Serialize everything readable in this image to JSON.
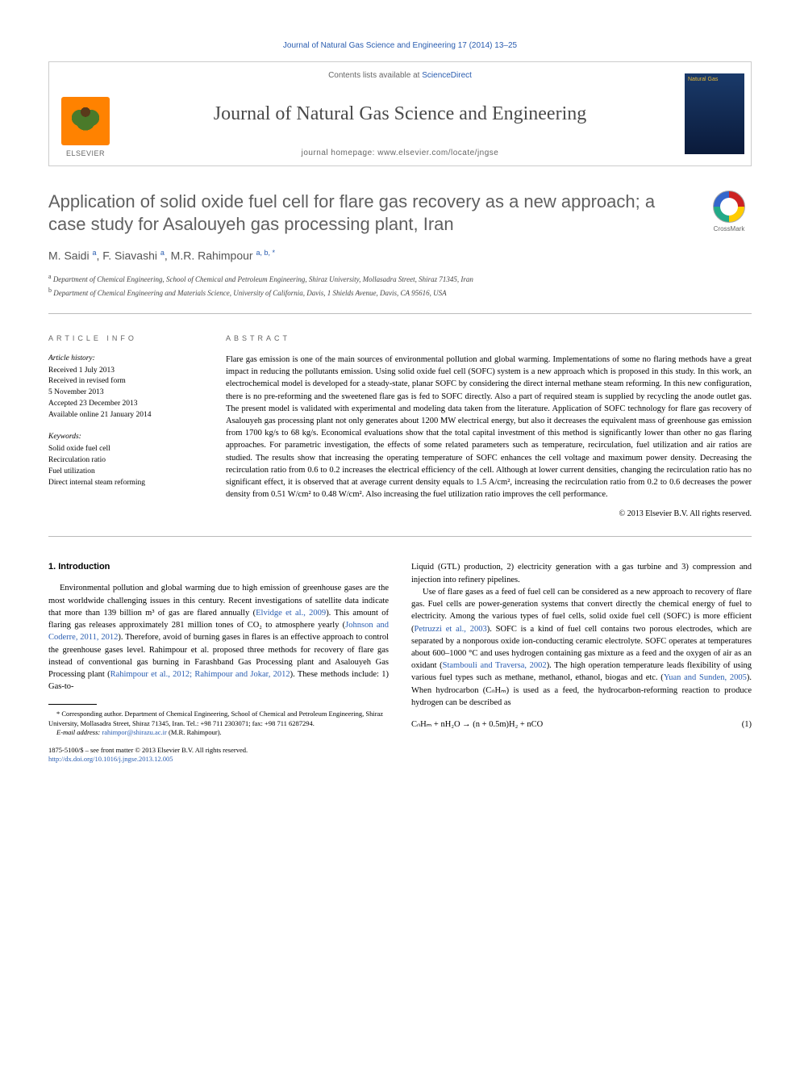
{
  "top_citation": "Journal of Natural Gas Science and Engineering 17 (2014) 13–25",
  "header": {
    "publisher_label": "ELSEVIER",
    "contents_prefix": "Contents lists available at ",
    "contents_link": "ScienceDirect",
    "journal_name": "Journal of Natural Gas Science and Engineering",
    "homepage_label": "journal homepage: ",
    "homepage_url": "www.elsevier.com/locate/jngse",
    "cover_text": "Natural Gas"
  },
  "crossmark_label": "CrossMark",
  "title": "Application of solid oxide fuel cell for flare gas recovery as a new approach; a case study for Asalouyeh gas processing plant, Iran",
  "authors_html": "M. Saidi <sup>a</sup>, F. Siavashi <sup>a</sup>, M.R. Rahimpour <sup>a, b, *</sup>",
  "affiliations": {
    "a": "Department of Chemical Engineering, School of Chemical and Petroleum Engineering, Shiraz University, Mollasadra Street, Shiraz 71345, Iran",
    "b": "Department of Chemical Engineering and Materials Science, University of California, Davis, 1 Shields Avenue, Davis, CA 95616, USA"
  },
  "article_info": {
    "heading": "ARTICLE INFO",
    "history_label": "Article history:",
    "history": [
      "Received 1 July 2013",
      "Received in revised form",
      "5 November 2013",
      "Accepted 23 December 2013",
      "Available online 21 January 2014"
    ],
    "keywords_label": "Keywords:",
    "keywords": [
      "Solid oxide fuel cell",
      "Recirculation ratio",
      "Fuel utilization",
      "Direct internal steam reforming"
    ]
  },
  "abstract": {
    "heading": "ABSTRACT",
    "text": "Flare gas emission is one of the main sources of environmental pollution and global warming. Implementations of some no flaring methods have a great impact in reducing the pollutants emission. Using solid oxide fuel cell (SOFC) system is a new approach which is proposed in this study. In this work, an electrochemical model is developed for a steady-state, planar SOFC by considering the direct internal methane steam reforming. In this new configuration, there is no pre-reforming and the sweetened flare gas is fed to SOFC directly. Also a part of required steam is supplied by recycling the anode outlet gas. The present model is validated with experimental and modeling data taken from the literature. Application of SOFC technology for flare gas recovery of Asalouyeh gas processing plant not only generates about 1200 MW electrical energy, but also it decreases the equivalent mass of greenhouse gas emission from 1700 kg/s to 68 kg/s. Economical evaluations show that the total capital investment of this method is significantly lower than other no gas flaring approaches. For parametric investigation, the effects of some related parameters such as temperature, recirculation, fuel utilization and air ratios are studied. The results show that increasing the operating temperature of SOFC enhances the cell voltage and maximum power density. Decreasing the recirculation ratio from 0.6 to 0.2 increases the electrical efficiency of the cell. Although at lower current densities, changing the recirculation ratio has no significant effect, it is observed that at average current density equals to 1.5 A/cm², increasing the recirculation ratio from 0.2 to 0.6 decreases the power density from 0.51 W/cm² to 0.48 W/cm². Also increasing the fuel utilization ratio improves the cell performance.",
    "copyright": "© 2013 Elsevier B.V. All rights reserved."
  },
  "body": {
    "section_heading": "1. Introduction",
    "para1_pre": "Environmental pollution and global warming due to high emission of greenhouse gases are the most worldwide challenging issues in this century. Recent investigations of satellite data indicate that more than 139 billion m³ of gas are flared annually (",
    "ref1": "Elvidge et al., 2009",
    "para1_mid1": "). This amount of flaring gas releases approximately 281 million tones of CO₂ to atmosphere yearly (",
    "ref2": "Johnson and Coderre, 2011, 2012",
    "para1_mid2": "). Therefore, avoid of burning gases in flares is an effective approach to control the greenhouse gases level. Rahimpour et al. proposed three methods for recovery of flare gas instead of conventional gas burning in Farashband Gas Processing plant and Asalouyeh Gas Processing plant (",
    "ref3": "Rahimpour et al., 2012; Rahimpour and Jokar, 2012",
    "para1_post": "). These methods include: 1) Gas-to-",
    "para2": "Liquid (GTL) production, 2) electricity generation with a gas turbine and 3) compression and injection into refinery pipelines.",
    "para3_pre": "Use of flare gases as a feed of fuel cell can be considered as a new approach to recovery of flare gas. Fuel cells are power-generation systems that convert directly the chemical energy of fuel to electricity. Among the various types of fuel cells, solid oxide fuel cell (SOFC) is more efficient (",
    "ref4": "Petruzzi et al., 2003",
    "para3_mid1": "). SOFC is a kind of fuel cell contains two porous electrodes, which are separated by a nonporous oxide ion-conducting ceramic electrolyte. SOFC operates at temperatures about 600–1000 °C and uses hydrogen containing gas mixture as a feed and the oxygen of air as an oxidant (",
    "ref5": "Stambouli and Traversa, 2002",
    "para3_mid2": "). The high operation temperature leads flexibility of using various fuel types such as methane, methanol, ethanol, biogas and etc. (",
    "ref6": "Yuan and Sunden, 2005",
    "para3_post": "). When hydrocarbon (CₙHₘ) is used as a feed, the hydrocarbon-reforming reaction to produce hydrogen can be described as",
    "equation": "CₙHₘ + nH₂O → (n + 0.5m)H₂ + nCO",
    "equation_num": "(1)"
  },
  "footnotes": {
    "corresponding": "* Corresponding author. Department of Chemical Engineering, School of Chemical and Petroleum Engineering, Shiraz University, Mollasadra Street, Shiraz 71345, Iran. Tel.: +98 711 2303071; fax: +98 711 6287294.",
    "email_label": "E-mail address: ",
    "email": "rahimpor@shirazu.ac.ir",
    "email_suffix": " (M.R. Rahimpour)."
  },
  "bottom": {
    "issn_line": "1875-5100/$ – see front matter © 2013 Elsevier B.V. All rights reserved.",
    "doi": "http://dx.doi.org/10.1016/j.jngse.2013.12.005"
  },
  "colors": {
    "link": "#2a5db0",
    "heading_gray": "#606060",
    "border": "#bbbbbb",
    "elsevier_orange": "#ff8200"
  }
}
